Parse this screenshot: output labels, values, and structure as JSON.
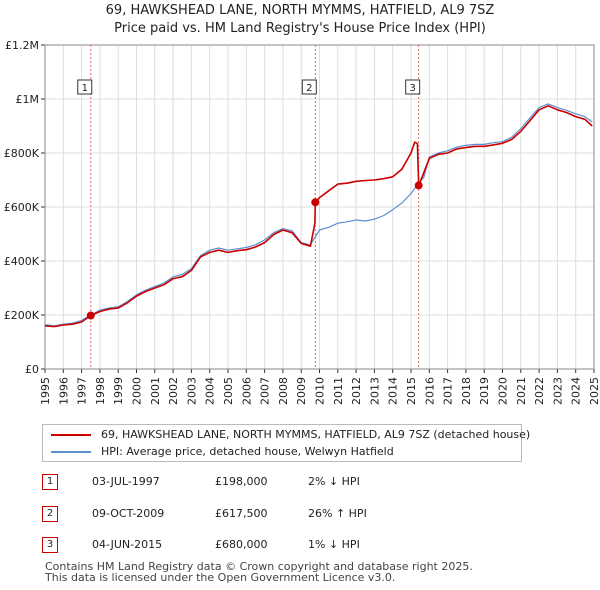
{
  "title_line1": "69, HAWKSHEAD LANE, NORTH MYMMS, HATFIELD, AL9 7SZ",
  "title_line2": "Price paid vs. HM Land Registry's House Price Index (HPI)",
  "chart_data": {
    "type": "line",
    "xlim": [
      1995,
      2025
    ],
    "ylim": [
      0,
      1200000
    ],
    "yticks": [
      {
        "value": 0,
        "label": "£0"
      },
      {
        "value": 200000,
        "label": "£200K"
      },
      {
        "value": 400000,
        "label": "£400K"
      },
      {
        "value": 600000,
        "label": "£600K"
      },
      {
        "value": 800000,
        "label": "£800K"
      },
      {
        "value": 1000000,
        "label": "£1M"
      },
      {
        "value": 1200000,
        "label": "£1.2M"
      }
    ],
    "xticks": [
      "1995",
      "1996",
      "1997",
      "1998",
      "1999",
      "2000",
      "2001",
      "2002",
      "2003",
      "2004",
      "2005",
      "2006",
      "2007",
      "2008",
      "2009",
      "2010",
      "2011",
      "2012",
      "2013",
      "2014",
      "2015",
      "2016",
      "2017",
      "2018",
      "2019",
      "2020",
      "2021",
      "2022",
      "2023",
      "2024",
      "2025"
    ],
    "series": [
      {
        "name": "69, HAWKSHEAD LANE, NORTH MYMMS, HATFIELD, AL9 7SZ (detached house)",
        "color": "#cc0000",
        "points": [
          [
            1995.0,
            160000
          ],
          [
            1995.5,
            157000
          ],
          [
            1996.0,
            163000
          ],
          [
            1996.5,
            166000
          ],
          [
            1997.0,
            174000
          ],
          [
            1997.5,
            198000
          ],
          [
            1998.0,
            213000
          ],
          [
            1998.5,
            222000
          ],
          [
            1999.0,
            226000
          ],
          [
            1999.5,
            245000
          ],
          [
            2000.0,
            270000
          ],
          [
            2000.5,
            287000
          ],
          [
            2001.0,
            300000
          ],
          [
            2001.5,
            312000
          ],
          [
            2002.0,
            335000
          ],
          [
            2002.5,
            342000
          ],
          [
            2003.0,
            365000
          ],
          [
            2003.5,
            415000
          ],
          [
            2004.0,
            432000
          ],
          [
            2004.5,
            440000
          ],
          [
            2005.0,
            432000
          ],
          [
            2005.5,
            438000
          ],
          [
            2006.0,
            442000
          ],
          [
            2006.5,
            452000
          ],
          [
            2007.0,
            468000
          ],
          [
            2007.5,
            498000
          ],
          [
            2008.0,
            515000
          ],
          [
            2008.5,
            505000
          ],
          [
            2009.0,
            465000
          ],
          [
            2009.5,
            455000
          ],
          [
            2009.75,
            540000
          ],
          [
            2009.77,
            617500
          ],
          [
            2010.0,
            635000
          ],
          [
            2010.5,
            660000
          ],
          [
            2011.0,
            685000
          ],
          [
            2011.5,
            688000
          ],
          [
            2012.0,
            695000
          ],
          [
            2012.5,
            698000
          ],
          [
            2013.0,
            700000
          ],
          [
            2013.5,
            705000
          ],
          [
            2014.0,
            712000
          ],
          [
            2014.5,
            740000
          ],
          [
            2015.0,
            800000
          ],
          [
            2015.2,
            840000
          ],
          [
            2015.35,
            835000
          ],
          [
            2015.42,
            680000
          ],
          [
            2015.6,
            710000
          ],
          [
            2016.0,
            780000
          ],
          [
            2016.5,
            795000
          ],
          [
            2017.0,
            800000
          ],
          [
            2017.5,
            815000
          ],
          [
            2018.0,
            820000
          ],
          [
            2018.5,
            825000
          ],
          [
            2019.0,
            825000
          ],
          [
            2019.5,
            830000
          ],
          [
            2020.0,
            836000
          ],
          [
            2020.5,
            850000
          ],
          [
            2021.0,
            880000
          ],
          [
            2021.5,
            920000
          ],
          [
            2022.0,
            960000
          ],
          [
            2022.5,
            975000
          ],
          [
            2023.0,
            960000
          ],
          [
            2023.5,
            950000
          ],
          [
            2024.0,
            935000
          ],
          [
            2024.5,
            925000
          ],
          [
            2024.9,
            900000
          ]
        ]
      },
      {
        "name": "HPI: Average price, detached house, Welwyn Hatfield",
        "color": "#5b8fd0",
        "points": [
          [
            1995.0,
            164000
          ],
          [
            1995.5,
            160000
          ],
          [
            1996.0,
            166000
          ],
          [
            1996.5,
            170000
          ],
          [
            1997.0,
            180000
          ],
          [
            1997.5,
            200000
          ],
          [
            1998.0,
            218000
          ],
          [
            1998.5,
            226000
          ],
          [
            1999.0,
            230000
          ],
          [
            1999.5,
            250000
          ],
          [
            2000.0,
            275000
          ],
          [
            2000.5,
            292000
          ],
          [
            2001.0,
            305000
          ],
          [
            2001.5,
            318000
          ],
          [
            2002.0,
            342000
          ],
          [
            2002.5,
            350000
          ],
          [
            2003.0,
            372000
          ],
          [
            2003.5,
            420000
          ],
          [
            2004.0,
            440000
          ],
          [
            2004.5,
            448000
          ],
          [
            2005.0,
            440000
          ],
          [
            2005.5,
            445000
          ],
          [
            2006.0,
            450000
          ],
          [
            2006.5,
            460000
          ],
          [
            2007.0,
            478000
          ],
          [
            2007.5,
            505000
          ],
          [
            2008.0,
            520000
          ],
          [
            2008.5,
            512000
          ],
          [
            2009.0,
            468000
          ],
          [
            2009.5,
            460000
          ],
          [
            2009.77,
            490000
          ],
          [
            2010.0,
            515000
          ],
          [
            2010.5,
            525000
          ],
          [
            2011.0,
            540000
          ],
          [
            2011.5,
            545000
          ],
          [
            2012.0,
            552000
          ],
          [
            2012.5,
            548000
          ],
          [
            2013.0,
            555000
          ],
          [
            2013.5,
            568000
          ],
          [
            2014.0,
            590000
          ],
          [
            2014.5,
            615000
          ],
          [
            2015.0,
            650000
          ],
          [
            2015.42,
            688000
          ],
          [
            2015.7,
            710000
          ],
          [
            2016.0,
            785000
          ],
          [
            2016.5,
            800000
          ],
          [
            2017.0,
            808000
          ],
          [
            2017.5,
            822000
          ],
          [
            2018.0,
            828000
          ],
          [
            2018.5,
            832000
          ],
          [
            2019.0,
            832000
          ],
          [
            2019.5,
            838000
          ],
          [
            2020.0,
            842000
          ],
          [
            2020.5,
            858000
          ],
          [
            2021.0,
            890000
          ],
          [
            2021.5,
            930000
          ],
          [
            2022.0,
            968000
          ],
          [
            2022.5,
            982000
          ],
          [
            2023.0,
            968000
          ],
          [
            2023.5,
            958000
          ],
          [
            2024.0,
            945000
          ],
          [
            2024.5,
            935000
          ],
          [
            2024.9,
            915000
          ]
        ]
      }
    ],
    "sales": [
      {
        "label": "1",
        "year": 1997.5,
        "value": 198000
      },
      {
        "label": "2",
        "year": 2009.77,
        "value": 617500
      },
      {
        "label": "3",
        "year": 2015.42,
        "value": 680000
      }
    ]
  },
  "legend": {
    "property_label": "69, HAWKSHEAD LANE, NORTH MYMMS, HATFIELD, AL9 7SZ (detached house)",
    "hpi_label": "HPI: Average price, detached house, Welwyn Hatfield"
  },
  "sales_table": [
    {
      "num": "1",
      "date": "03-JUL-1997",
      "price": "£198,000",
      "hpi": "2% ↓ HPI"
    },
    {
      "num": "2",
      "date": "09-OCT-2009",
      "price": "£617,500",
      "hpi": "26% ↑ HPI"
    },
    {
      "num": "3",
      "date": "04-JUN-2015",
      "price": "£680,000",
      "hpi": "1% ↓ HPI"
    }
  ],
  "footer_line1": "Contains HM Land Registry data © Crown copyright and database right 2025.",
  "footer_line2": "This data is licensed under the Open Government Licence v3.0."
}
